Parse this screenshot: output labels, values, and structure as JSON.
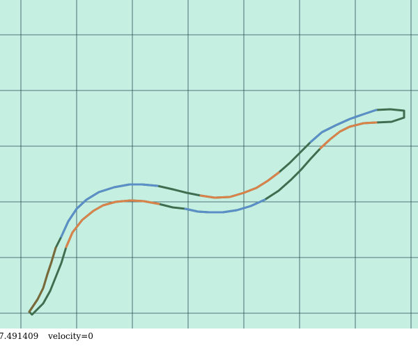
{
  "status": {
    "time_text": "7.491409",
    "velocity_text": "velocity=0"
  },
  "colors": {
    "background": "#c5efe1",
    "grid": "#2b4e5c",
    "outer_stroke": "#3e6e4f",
    "blue_segment": "#5b8fc8",
    "orange_segment": "#d9824a",
    "olive_segment": "#7a6a3a"
  },
  "icons": {
    "track": "serpentine-path-icon"
  }
}
